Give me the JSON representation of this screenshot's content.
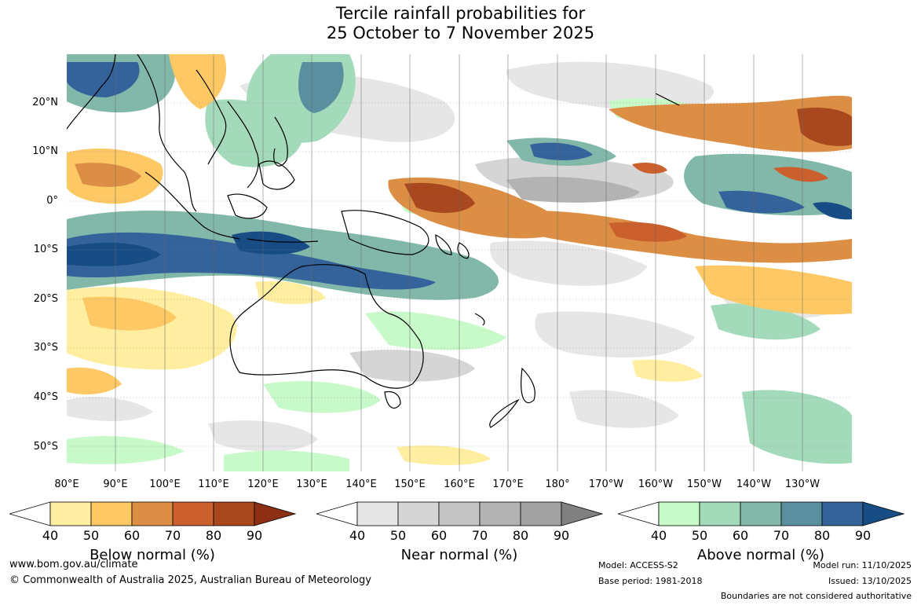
{
  "title": {
    "line1": "Tercile rainfall probabilities for",
    "line2": "25 October to 7 November 2025"
  },
  "map": {
    "lat_labels": [
      "20°N",
      "10°N",
      "0°",
      "10°S",
      "20°S",
      "30°S",
      "40°S",
      "50°S"
    ],
    "lon_labels": [
      "80°E",
      "90°E",
      "100°E",
      "110°E",
      "120°E",
      "130°E",
      "140°E",
      "150°E",
      "160°E",
      "170°E",
      "180°",
      "170°W",
      "160°W",
      "150°W",
      "140°W",
      "130°W"
    ]
  },
  "colorbars": [
    {
      "title": "Below normal (%)",
      "ticks": [
        "40",
        "50",
        "60",
        "70",
        "80",
        "90"
      ],
      "colors": [
        "#ffeda0",
        "#fec965",
        "#dc8f44",
        "#c9602e",
        "#a9471f",
        "#8c2f14"
      ]
    },
    {
      "title": "Near normal (%)",
      "ticks": [
        "40",
        "50",
        "60",
        "70",
        "80",
        "90"
      ],
      "colors": [
        "#e6e6e6",
        "#d5d5d5",
        "#c4c4c4",
        "#b3b3b3",
        "#a2a2a2",
        "#808080"
      ]
    },
    {
      "title": "Above normal (%)",
      "ticks": [
        "40",
        "50",
        "60",
        "70",
        "80",
        "90"
      ],
      "colors": [
        "#c7f9c9",
        "#a3dab9",
        "#82b8a9",
        "#5a8fa0",
        "#33639a",
        "#184c85"
      ]
    }
  ],
  "footer": {
    "website": "www.bom.gov.au/climate",
    "copyright": "© Commonwealth of Australia 2025, Australian Bureau of Meteorology",
    "model": "Model: ACCESS-S2",
    "base_period": "Base period: 1981-2018",
    "model_run": "Model run: 11/10/2025",
    "issued": "Issued: 13/10/2025",
    "boundaries": "Boundaries are not considered authoritative"
  }
}
